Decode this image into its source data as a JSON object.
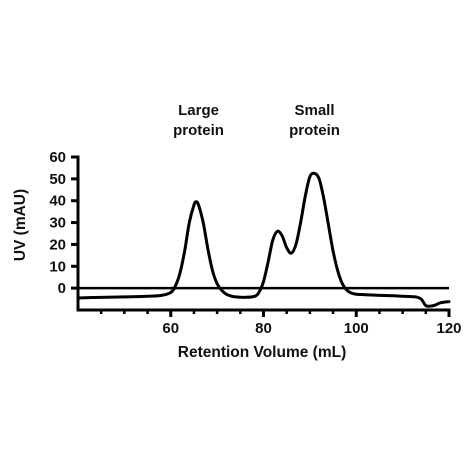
{
  "chart_data": {
    "type": "line",
    "title": "",
    "xlabel": "Retention Volume (mL)",
    "ylabel": "UV (mAU)",
    "xlim": [
      40,
      120
    ],
    "ylim": [
      -10,
      60
    ],
    "x_ticks": [
      60,
      80,
      100,
      120
    ],
    "x_tick_labels": [
      "60",
      "80",
      "100",
      "120"
    ],
    "x_minor_ticks": [
      45,
      50,
      55,
      65,
      70,
      75,
      85,
      90,
      95,
      105,
      110,
      115
    ],
    "y_ticks": [
      0,
      10,
      20,
      30,
      40,
      50,
      60
    ],
    "y_tick_labels": [
      "0",
      "10",
      "20",
      "30",
      "40",
      "50",
      "60"
    ],
    "grid": false,
    "legend": "none",
    "line_color": "#000000",
    "annotations": [
      {
        "lines": [
          "Large",
          "protein"
        ],
        "x": 66,
        "y": 71
      },
      {
        "lines": [
          "Small",
          "protein"
        ],
        "x": 91,
        "y": 71
      }
    ],
    "series": [
      {
        "x": [
          40,
          45,
          50,
          55,
          58,
          60,
          61,
          62,
          63,
          64,
          65,
          65.5,
          66,
          67,
          68,
          69,
          70,
          71,
          72,
          73,
          74,
          76,
          78,
          79,
          80,
          81,
          82,
          83,
          84,
          85,
          86,
          87,
          88,
          89,
          90,
          91,
          92,
          93,
          94,
          95,
          96,
          97,
          98,
          99,
          100,
          102,
          105,
          108,
          110,
          112,
          113,
          114,
          115,
          116,
          117,
          118,
          119,
          120
        ],
        "y": [
          -4.5,
          -4.2,
          -4.0,
          -3.7,
          -3.3,
          -2.0,
          1.0,
          7.0,
          17.0,
          30.0,
          38.0,
          39.5,
          38.0,
          30.0,
          18.0,
          8.0,
          2.0,
          -1.0,
          -2.8,
          -3.6,
          -4.0,
          -4.2,
          -3.8,
          -2.0,
          3.0,
          12.0,
          22.0,
          26.0,
          24.0,
          18.5,
          16.0,
          20.0,
          30.0,
          42.0,
          51.0,
          52.5,
          50.0,
          41.0,
          29.0,
          17.0,
          8.0,
          2.0,
          -1.0,
          -2.3,
          -2.8,
          -3.0,
          -3.3,
          -3.5,
          -3.7,
          -3.9,
          -4.1,
          -5.0,
          -8.0,
          -8.2,
          -7.8,
          -6.8,
          -6.4,
          -6.2
        ]
      }
    ]
  }
}
